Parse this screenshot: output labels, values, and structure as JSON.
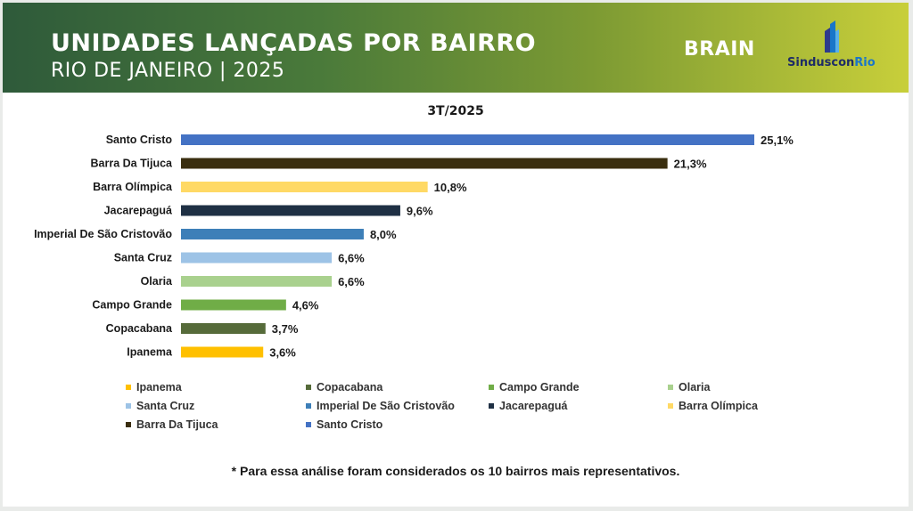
{
  "header": {
    "title": "UNIDADES LANÇADAS POR BAIRRO",
    "subtitle": "RIO DE JANEIRO | 2025",
    "brand_brain": "BRAIN",
    "brand_sinduscon_a": "Sinduscon",
    "brand_sinduscon_b": "Rio"
  },
  "footnote": "* Para essa análise foram considerados os 10 bairros mais representativos.",
  "chart_data": {
    "type": "bar",
    "orientation": "horizontal",
    "title": "3T/2025",
    "categories": [
      "Santo Cristo",
      "Barra Da Tijuca",
      "Barra Olímpica",
      "Jacarepaguá",
      "Imperial De São Cristovão",
      "Santa Cruz",
      "Olaria",
      "Campo Grande",
      "Copacabana",
      "Ipanema"
    ],
    "values": [
      25.1,
      21.3,
      10.8,
      9.6,
      8.0,
      6.6,
      6.6,
      4.6,
      3.7,
      3.6
    ],
    "value_labels": [
      "25,1%",
      "21,3%",
      "10,8%",
      "9,6%",
      "8,0%",
      "6,6%",
      "6,6%",
      "4,6%",
      "3,7%",
      "3,6%"
    ],
    "colors": [
      "#4472c4",
      "#3a2e0f",
      "#ffd965",
      "#1f3044",
      "#3d7fb8",
      "#9dc3e6",
      "#a9d18e",
      "#70ad47",
      "#566b3a",
      "#ffc000"
    ],
    "xlim": [
      0,
      25.1
    ],
    "grid": false,
    "legend_position": "bottom",
    "legend_order": [
      "Ipanema",
      "Copacabana",
      "Campo Grande",
      "Olaria",
      "Santa Cruz",
      "Imperial De São Cristovão",
      "Jacarepaguá",
      "Barra Olímpica",
      "Barra Da Tijuca",
      "Santo Cristo"
    ]
  }
}
